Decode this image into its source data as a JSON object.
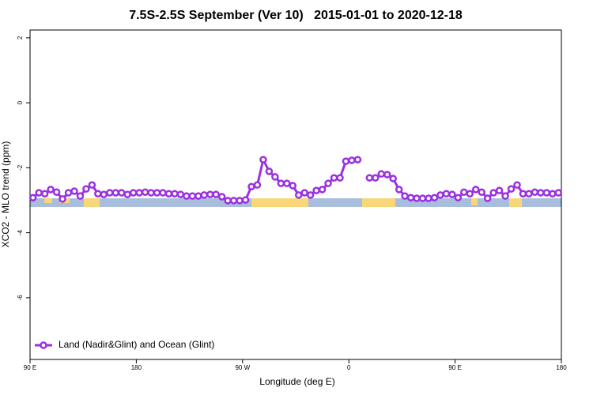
{
  "chart_data": {
    "type": "line",
    "title": "7.5S-2.5S September (Ver 10)   2015-01-01 to 2020-12-18",
    "xlabel": "Longitude (deg E)",
    "ylabel": "XCO2 - MLO trend (ppm)",
    "xlim": [
      90,
      540
    ],
    "xticks": [
      {
        "value": 90,
        "label": "90 E"
      },
      180,
      {
        "value": 270,
        "label": "90 W"
      },
      {
        "value": 360,
        "label": "0"
      },
      {
        "value": 450,
        "label": "90 E"
      },
      {
        "value": 540,
        "label": "180"
      }
    ],
    "ylim": [
      -7.9,
      2.24
    ],
    "yticks": [
      2,
      0,
      -2,
      -4,
      -6
    ],
    "legend": "bottomleft",
    "x": [
      92.5,
      97.5,
      102.5,
      107.5,
      112.5,
      117.5,
      122.5,
      127.5,
      132.5,
      137.5,
      142.5,
      147.5,
      152.5,
      157.5,
      162.5,
      167.5,
      172.5,
      177.5,
      182.5,
      187.5,
      192.5,
      197.5,
      202.5,
      207.5,
      212.5,
      217.5,
      222.5,
      227.5,
      232.5,
      237.5,
      242.5,
      247.5,
      252.5,
      257.5,
      262.5,
      267.5,
      272.5,
      277.5,
      282.5,
      287.5,
      292.5,
      297.5,
      302.5,
      307.5,
      312.5,
      317.5,
      322.5,
      327.5,
      332.5,
      337.5,
      342.5,
      347.5,
      352.5,
      357.5,
      362.5,
      367.5,
      372.5,
      377.5,
      382.5,
      387.5,
      392.5,
      397.5,
      402.5,
      407.5,
      412.5,
      417.5,
      422.5,
      427.5,
      432.5,
      437.5,
      442.5,
      447.5,
      452.5,
      457.5,
      462.5,
      467.5,
      472.5,
      477.5,
      482.5,
      487.5,
      492.5,
      497.5,
      502.5,
      507.5,
      512.5,
      517.5,
      522.5,
      527.5,
      532.5,
      537.5
    ],
    "series": [
      {
        "name": "Land (Nadir&Glint) and Ocean (Glint)",
        "color": "#9b30e0",
        "values": [
          -2.92,
          -2.77,
          -2.8,
          -2.67,
          -2.75,
          -2.96,
          -2.77,
          -2.72,
          -2.87,
          -2.65,
          -2.53,
          -2.8,
          -2.82,
          -2.77,
          -2.77,
          -2.77,
          -2.82,
          -2.77,
          -2.77,
          -2.75,
          -2.77,
          -2.77,
          -2.77,
          -2.8,
          -2.8,
          -2.82,
          -2.87,
          -2.87,
          -2.87,
          -2.84,
          -2.82,
          -2.82,
          -2.89,
          -3.01,
          -3.01,
          -3.01,
          -2.99,
          -2.58,
          -2.53,
          -1.75,
          -2.11,
          -2.28,
          -2.48,
          -2.48,
          -2.55,
          -2.84,
          -2.77,
          -2.84,
          -2.7,
          -2.67,
          -2.48,
          -2.31,
          -2.31,
          -1.8,
          -1.77,
          -1.75,
          null,
          -2.31,
          -2.31,
          -2.19,
          -2.21,
          -2.33,
          -2.67,
          -2.87,
          -2.92,
          -2.94,
          -2.94,
          -2.94,
          -2.92,
          -2.84,
          -2.8,
          -2.82,
          -2.92,
          -2.75,
          -2.8,
          -2.67,
          -2.75,
          -2.94,
          -2.77,
          -2.7,
          -2.87,
          -2.65,
          -2.53,
          -2.8,
          -2.8,
          -2.75,
          -2.77,
          -2.77,
          -2.8,
          -2.77
        ]
      }
    ]
  }
}
